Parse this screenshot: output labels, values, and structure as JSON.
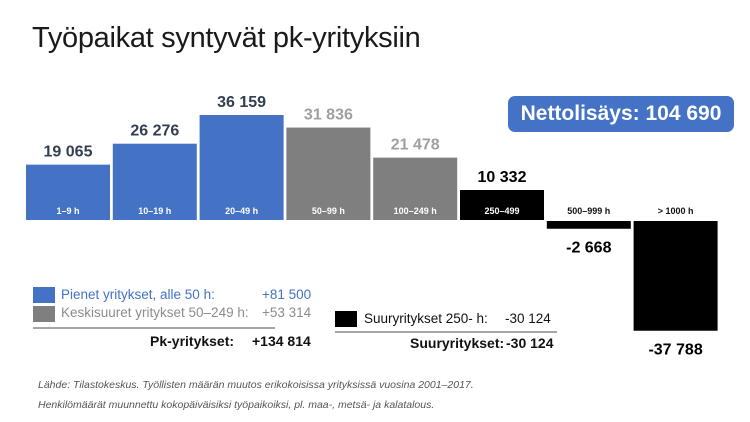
{
  "title": "Työpaikat syntyvät pk-yrityksiin",
  "badge": "Nettolisäys: 104 690",
  "chart_data": {
    "type": "bar",
    "title": "Työpaikat syntyvät pk-yrityksiin",
    "categories": [
      "1–9 h",
      "10–19 h",
      "20–49 h",
      "50–99 h",
      "100–249 h",
      "250–499",
      "500–999 h",
      "> 1000 h"
    ],
    "values": [
      19065,
      26276,
      36159,
      31836,
      21478,
      10332,
      -2668,
      -37788
    ],
    "value_labels": [
      "19 065",
      "26 276",
      "36 159",
      "31 836",
      "21 478",
      "10 332",
      "-2 668",
      "-37 788"
    ],
    "groups": [
      "small",
      "small",
      "small",
      "medium",
      "medium",
      "large",
      "large",
      "large"
    ],
    "colors": {
      "small": "#4472C4",
      "medium": "#7F7F7F",
      "large": "#000000"
    },
    "label_colors": {
      "small": "#333F50",
      "medium": "#A0A0A0",
      "large": "#000000"
    },
    "xlabel": "",
    "ylabel": "",
    "grid": false
  },
  "legend": {
    "small": {
      "label": "Pienet yritykset, alle 50 h:",
      "value": "+81 500"
    },
    "medium": {
      "label": "Keskisuuret yritykset 50–249 h:",
      "value": "+53 314"
    },
    "large": {
      "label": "Suuryritykset 250- h:",
      "value": "-30 124"
    },
    "pk_total_label": "Pk-yritykset:",
    "pk_total_value": "+134 814",
    "large_total_label": "Suuryritykset:",
    "large_total_value": "-30 124"
  },
  "source": [
    "Lähde: Tilastokeskus. Työllisten määrän muutos erikokoisissa yrityksissä vuosina 2001–2017.",
    "Henkilömäärät muunnettu kokopäiväisiksi työpaikoiksi, pl. maa-, metsä- ja kalatalous."
  ]
}
